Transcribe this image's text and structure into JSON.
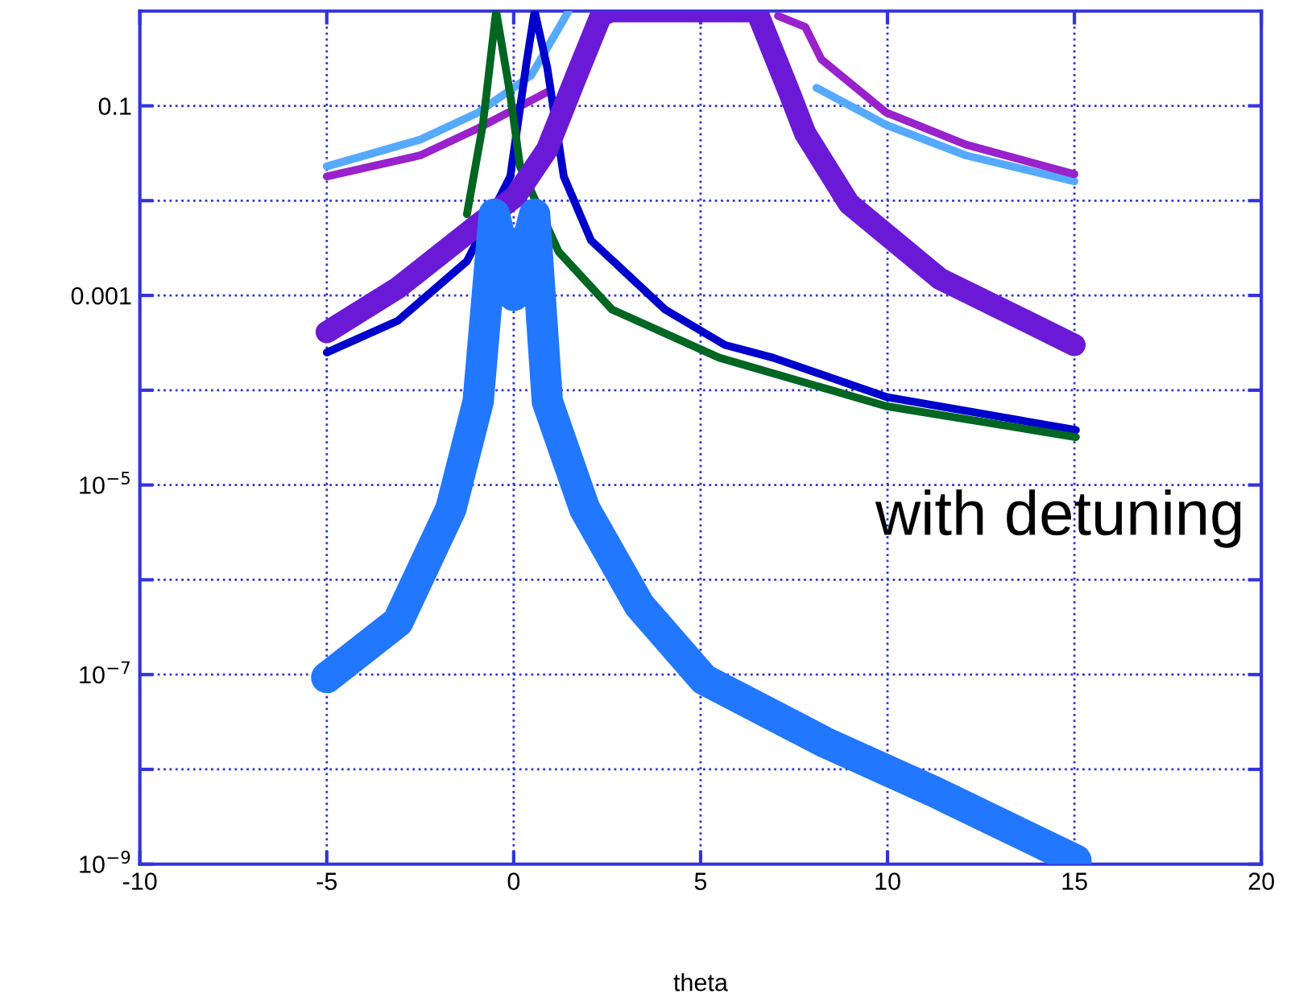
{
  "chart_data": {
    "type": "line",
    "xlabel": "theta",
    "annotations": [
      "with detuning"
    ],
    "log": "y",
    "grid": true,
    "line_style": "solid",
    "marker": "none",
    "xlim": [
      -10,
      20
    ],
    "xticks": [
      -10,
      -5,
      0,
      5,
      10,
      15,
      20
    ],
    "ylim": [
      1e-09,
      1
    ],
    "yticks": [
      {
        "value": 1e-09,
        "label": "10$^{−9}$"
      },
      {
        "value": 1e-08,
        "label": null
      },
      {
        "value": 1e-07,
        "label": "10$^{−7}$"
      },
      {
        "value": 1e-06,
        "label": null
      },
      {
        "value": 1e-05,
        "label": "10$^{−5}$"
      },
      {
        "value": 0.0001,
        "label": null
      },
      0.001,
      {
        "value": 0.01,
        "label": null
      },
      0.1
    ],
    "series": [
      {
        "color": "#55aaff",
        "x": [
          -5,
          -2.5,
          -0.95,
          0.47,
          1.47,
          5,
          8.1,
          9.96,
          12.1,
          15
        ],
        "values": [
          0.023,
          0.044,
          0.085,
          0.21,
          1,
          null,
          0.155,
          0.063,
          0.03,
          0.016
        ]
      },
      {
        "color": "#9922cc",
        "x": [
          -5,
          -2.5,
          -0.95,
          0.9,
          4,
          7.07,
          7.8,
          8.23,
          9.96,
          12.1,
          15
        ],
        "values": [
          0.018,
          0.03,
          0.058,
          0.14,
          null,
          0.89,
          0.68,
          0.31,
          0.085,
          0.039,
          0.019
        ]
      },
      {
        "color": "#0000cc",
        "x": [
          -5,
          -3.1,
          -1.25,
          -0.09,
          0.34,
          0.56,
          0.9,
          1.34,
          2.07,
          4.05,
          5.65,
          6.94,
          9.96,
          15.04
        ],
        "values": [
          0.00025,
          0.00054,
          0.0023,
          0.018,
          0.28,
          1,
          0.25,
          0.018,
          0.0038,
          0.00071,
          0.0003,
          0.00022,
          8.5e-05,
          3.8e-05
        ]
      },
      {
        "color": "#006622",
        "x": [
          -1.25,
          -0.82,
          -0.47,
          -0.09,
          0.17,
          1.2,
          2.63,
          5.5,
          9.96,
          15.04
        ],
        "values": [
          0.0072,
          0.065,
          1,
          0.13,
          0.023,
          0.0029,
          0.00071,
          0.00022,
          6.8e-05,
          3.2e-05
        ]
      },
      {
        "color": "#6a1ad6",
        "x": [
          -5,
          -3.1,
          -0.95,
          0.04,
          0.9,
          1.64,
          2.33,
          2.6,
          6.5,
          7.37,
          7.8,
          8.97,
          11.4,
          15
        ],
        "values": [
          0.00041,
          0.0012,
          0.0056,
          0.011,
          0.035,
          0.19,
          0.89,
          1,
          1,
          0.14,
          0.051,
          0.0093,
          0.0015,
          0.0003
        ]
      },
      {
        "color": "#2277ff",
        "x": [
          -5,
          -3.1,
          -1.68,
          -0.95,
          -0.52,
          0,
          0.56,
          0.9,
          1.9,
          3.36,
          5.09,
          8.36,
          11.25,
          15.04
        ],
        "values": [
          9.3e-08,
          3.6e-07,
          5.6e-06,
          7.6e-05,
          0.0072,
          0.001,
          0.0072,
          7.6e-05,
          5.6e-06,
          5.4e-07,
          8.9e-08,
          1.9e-08,
          5.8e-09,
          1.1e-09
        ]
      }
    ]
  }
}
